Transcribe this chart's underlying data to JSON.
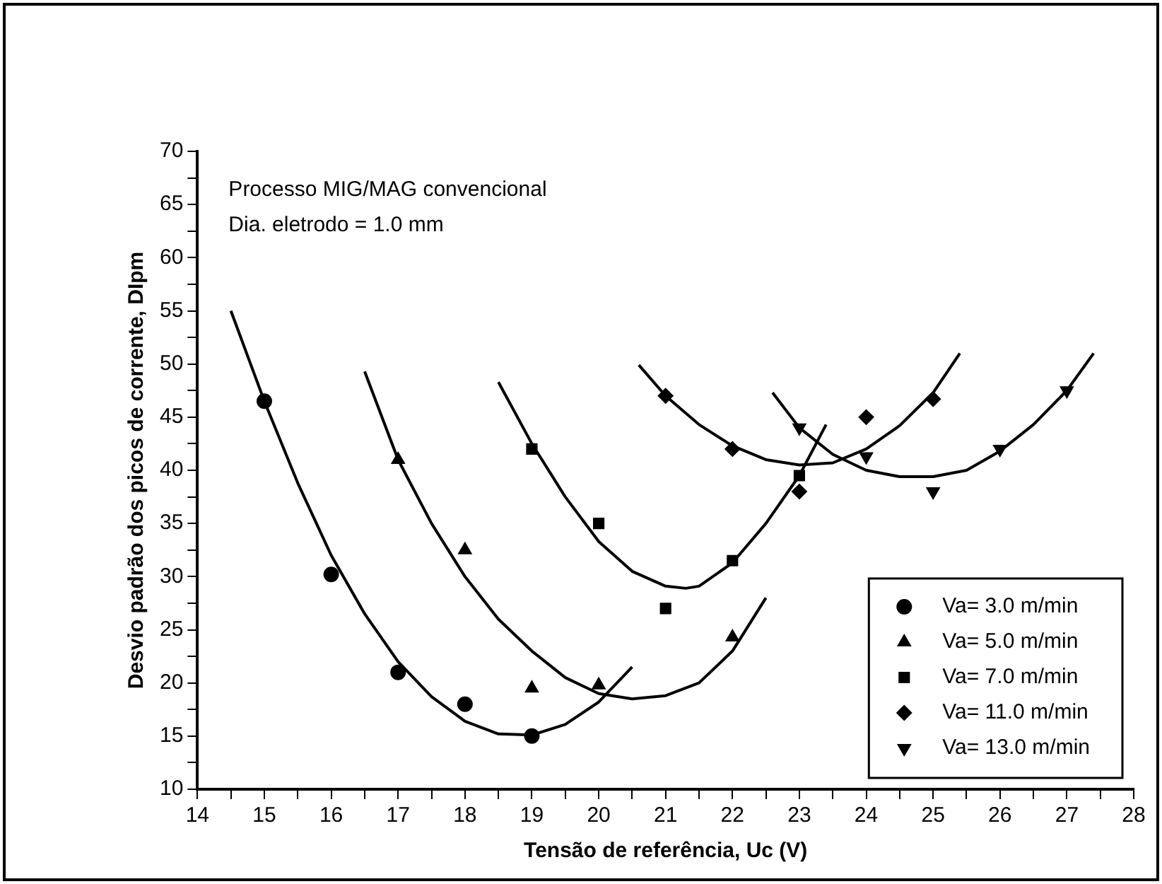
{
  "chart_data": {
    "type": "scatter",
    "xlabel": "Tensão de referência, Uc (V)",
    "ylabel": "Desvio padrão dos picos de corrente, DIpm",
    "annotations": [
      "Processo MIG/MAG convencional",
      "Dia. eletrodo = 1.0 mm"
    ],
    "xlim": [
      14,
      28
    ],
    "xticks": [
      14,
      {
        "value": 14.5,
        "label": null
      },
      15,
      {
        "value": 15.5,
        "label": null
      },
      16,
      {
        "value": 16.5,
        "label": null
      },
      17,
      {
        "value": 17.5,
        "label": null
      },
      18,
      {
        "value": 18.5,
        "label": null
      },
      19,
      {
        "value": 19.5,
        "label": null
      },
      20,
      {
        "value": 20.5,
        "label": null
      },
      21,
      {
        "value": 21.5,
        "label": null
      },
      22,
      {
        "value": 22.5,
        "label": null
      },
      23,
      {
        "value": 23.5,
        "label": null
      },
      24,
      {
        "value": 24.5,
        "label": null
      },
      25,
      {
        "value": 25.5,
        "label": null
      },
      26,
      {
        "value": 26.5,
        "label": null
      },
      27,
      {
        "value": 27.5,
        "label": null
      },
      28
    ],
    "ylim": [
      10,
      70
    ],
    "yticks": [
      10,
      {
        "value": 12.5,
        "label": null
      },
      15,
      {
        "value": 17.5,
        "label": null
      },
      20,
      {
        "value": 22.5,
        "label": null
      },
      25,
      {
        "value": 27.5,
        "label": null
      },
      30,
      {
        "value": 32.5,
        "label": null
      },
      35,
      {
        "value": 37.5,
        "label": null
      },
      40,
      {
        "value": 42.5,
        "label": null
      },
      45,
      {
        "value": 47.5,
        "label": null
      },
      50,
      {
        "value": 52.5,
        "label": null
      },
      55,
      {
        "value": 57.5,
        "label": null
      },
      60,
      {
        "value": 62.5,
        "label": null
      },
      65,
      {
        "value": 67.5,
        "label": null
      },
      70
    ],
    "grid": false,
    "legend": "bottom right",
    "series": [
      {
        "name": "Va= 3.0 m/min",
        "type": "scatter",
        "marker": "circle",
        "color": "#000000",
        "x": [
          15,
          16,
          17,
          18,
          19
        ],
        "values": [
          46.5,
          30.2,
          21,
          18,
          15
        ]
      },
      {
        "name": "Va= 5.0 m/min",
        "type": "scatter",
        "marker": "triangle",
        "color": "#000000",
        "x": [
          17,
          18,
          19,
          20,
          22
        ],
        "values": [
          41,
          32.5,
          19.5,
          19.8,
          24.3
        ]
      },
      {
        "name": "Va= 7.0 m/min",
        "type": "scatter",
        "marker": "square",
        "color": "#000000",
        "x": [
          19,
          20,
          21,
          22,
          23
        ],
        "values": [
          42,
          35,
          27,
          31.5,
          39.5
        ]
      },
      {
        "name": "Va= 11.0 m/min",
        "type": "scatter",
        "marker": "diamond",
        "color": "#000000",
        "x": [
          21,
          22,
          23,
          24,
          25
        ],
        "values": [
          47,
          42,
          38,
          45,
          46.7
        ]
      },
      {
        "name": "Va= 13.0 m/min",
        "type": "scatter",
        "marker": "triangle-down",
        "color": "#000000",
        "x": [
          23,
          24,
          25,
          26,
          27
        ],
        "values": [
          44,
          41.3,
          38,
          42,
          47.5
        ]
      },
      {
        "type": "line",
        "marker": "none",
        "color": "#000000",
        "x": [
          14.5,
          15,
          15.5,
          16,
          16.5,
          17,
          17.5,
          18,
          18.5,
          19,
          19.5,
          20,
          20.5
        ],
        "values": [
          55,
          46.5,
          38.8,
          32,
          26.5,
          22,
          18.7,
          16.4,
          15.2,
          15.1,
          16.1,
          18.2,
          21.5
        ]
      },
      {
        "type": "line",
        "marker": "none",
        "color": "#000000",
        "x": [
          16.5,
          17,
          17.5,
          18,
          18.5,
          19,
          19.5,
          20,
          20.5,
          21,
          21.5,
          22,
          22.5
        ],
        "values": [
          49.3,
          41,
          35,
          30,
          26,
          23,
          20.5,
          19,
          18.5,
          18.8,
          20,
          23,
          28
        ]
      },
      {
        "type": "line",
        "marker": "none",
        "color": "#000000",
        "x": [
          18.5,
          19,
          19.5,
          20,
          20.5,
          21,
          21.3,
          21.5,
          22,
          22.5,
          23,
          23.4
        ],
        "values": [
          48.3,
          42.5,
          37.5,
          33.3,
          30.5,
          29.1,
          28.9,
          29.1,
          31.3,
          35,
          39.5,
          44.3
        ]
      },
      {
        "type": "line",
        "marker": "none",
        "color": "#000000",
        "x": [
          20.6,
          21,
          21.5,
          22,
          22.5,
          23,
          23.5,
          24,
          24.5,
          25,
          25.4
        ],
        "values": [
          49.9,
          47,
          44.3,
          42.3,
          41,
          40.5,
          40.7,
          42,
          44.2,
          47.3,
          51
        ]
      },
      {
        "type": "line",
        "marker": "none",
        "color": "#000000",
        "x": [
          22.6,
          23,
          23.5,
          24,
          24.5,
          25,
          25.5,
          26,
          26.5,
          27,
          27.4
        ],
        "values": [
          47.3,
          44,
          41.5,
          40,
          39.4,
          39.4,
          40,
          41.8,
          44.3,
          47.5,
          51
        ]
      }
    ]
  }
}
